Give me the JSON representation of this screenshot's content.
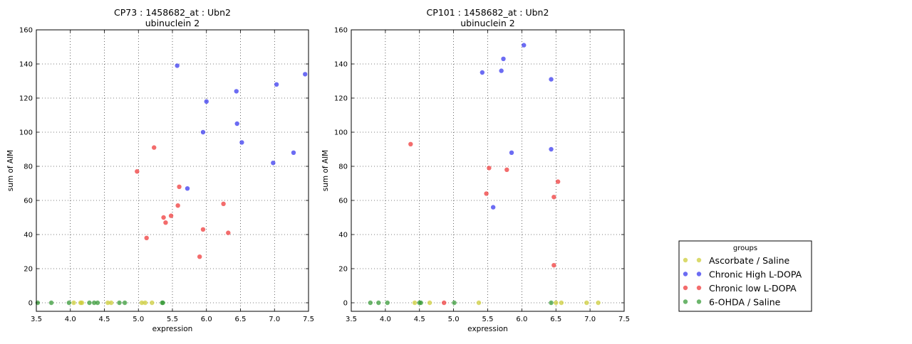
{
  "chart_data": [
    {
      "type": "scatter",
      "title": "CP73 : 1458682_at : Ubn2",
      "subtitle": "ubinuclein 2",
      "xlabel": "expression",
      "ylabel": "sum of AIM",
      "xlim": [
        3.5,
        7.5
      ],
      "ylim": [
        -5,
        160
      ],
      "xticks": [
        "3.5",
        "4.0",
        "4.5",
        "5.0",
        "5.5",
        "6.0",
        "6.5",
        "7.0",
        "7.5"
      ],
      "yticks": [
        "0",
        "20",
        "40",
        "60",
        "80",
        "100",
        "120",
        "140",
        "160"
      ],
      "grid": true,
      "series": [
        {
          "name": "Ascorbate / Saline",
          "color": "#cccc33",
          "points": [
            [
              4.05,
              0
            ],
            [
              4.15,
              0
            ],
            [
              4.17,
              0
            ],
            [
              4.55,
              0
            ],
            [
              4.6,
              0
            ],
            [
              5.05,
              0
            ],
            [
              5.1,
              0
            ],
            [
              5.2,
              0
            ]
          ]
        },
        {
          "name": "Chronic High L-DOPA",
          "color": "#3333ee",
          "points": [
            [
              5.57,
              139
            ],
            [
              6.0,
              118
            ],
            [
              5.95,
              100
            ],
            [
              5.72,
              67
            ],
            [
              6.44,
              124
            ],
            [
              6.45,
              105
            ],
            [
              6.52,
              94
            ],
            [
              7.03,
              128
            ],
            [
              6.98,
              82
            ],
            [
              7.28,
              88
            ],
            [
              7.45,
              134
            ]
          ]
        },
        {
          "name": "Chronic low L-DOPA",
          "color": "#ee3333",
          "points": [
            [
              5.23,
              91
            ],
            [
              4.98,
              77
            ],
            [
              5.6,
              68
            ],
            [
              5.58,
              57
            ],
            [
              5.37,
              50
            ],
            [
              5.48,
              51
            ],
            [
              5.4,
              47
            ],
            [
              5.12,
              38
            ],
            [
              5.95,
              43
            ],
            [
              6.25,
              58
            ],
            [
              6.32,
              41
            ],
            [
              5.9,
              27
            ]
          ]
        },
        {
          "name": "6-OHDA / Saline",
          "color": "#339933",
          "points": [
            [
              3.52,
              0
            ],
            [
              3.72,
              0
            ],
            [
              3.98,
              0
            ],
            [
              4.28,
              0
            ],
            [
              4.35,
              0
            ],
            [
              4.4,
              0
            ],
            [
              4.72,
              0
            ],
            [
              4.8,
              0
            ],
            [
              5.35,
              0
            ],
            [
              5.36,
              0
            ]
          ]
        }
      ]
    },
    {
      "type": "scatter",
      "title": "CP101 : 1458682_at : Ubn2",
      "subtitle": "ubinuclein 2",
      "xlabel": "expression",
      "ylabel": "sum of AIM",
      "xlim": [
        3.5,
        7.5
      ],
      "ylim": [
        -5,
        160
      ],
      "xticks": [
        "3.5",
        "4.0",
        "4.5",
        "5.0",
        "5.5",
        "6.0",
        "6.5",
        "7.0",
        "7.5"
      ],
      "yticks": [
        "0",
        "20",
        "40",
        "60",
        "80",
        "100",
        "120",
        "140",
        "160"
      ],
      "grid": true,
      "series": [
        {
          "name": "Ascorbate / Saline",
          "color": "#cccc33",
          "points": [
            [
              4.43,
              0
            ],
            [
              4.65,
              0
            ],
            [
              5.37,
              0
            ],
            [
              6.5,
              0
            ],
            [
              6.58,
              0
            ],
            [
              6.95,
              0
            ],
            [
              7.12,
              0
            ]
          ]
        },
        {
          "name": "Chronic High L-DOPA",
          "color": "#3333ee",
          "points": [
            [
              6.03,
              151
            ],
            [
              5.73,
              143
            ],
            [
              5.42,
              135
            ],
            [
              5.7,
              136
            ],
            [
              6.43,
              131
            ],
            [
              5.85,
              88
            ],
            [
              6.43,
              90
            ],
            [
              5.58,
              56
            ]
          ]
        },
        {
          "name": "Chronic low L-DOPA",
          "color": "#ee3333",
          "points": [
            [
              4.37,
              93
            ],
            [
              5.52,
              79
            ],
            [
              5.78,
              78
            ],
            [
              5.48,
              64
            ],
            [
              6.47,
              62
            ],
            [
              6.53,
              71
            ],
            [
              6.47,
              22
            ],
            [
              4.86,
              0
            ]
          ]
        },
        {
          "name": "6-OHDA / Saline",
          "color": "#339933",
          "points": [
            [
              3.78,
              0
            ],
            [
              3.9,
              0
            ],
            [
              4.03,
              0
            ],
            [
              4.5,
              0
            ],
            [
              4.52,
              0
            ],
            [
              5.01,
              0
            ],
            [
              6.43,
              0
            ]
          ]
        }
      ]
    }
  ],
  "legend": {
    "title": "groups",
    "placement": "bottom-right",
    "items": [
      {
        "label": "Ascorbate / Saline",
        "color": "#cccc33"
      },
      {
        "label": "Chronic High L-DOPA",
        "color": "#3333ee"
      },
      {
        "label": "Chronic low L-DOPA",
        "color": "#ee3333"
      },
      {
        "label": "6-OHDA / Saline",
        "color": "#339933"
      }
    ]
  }
}
